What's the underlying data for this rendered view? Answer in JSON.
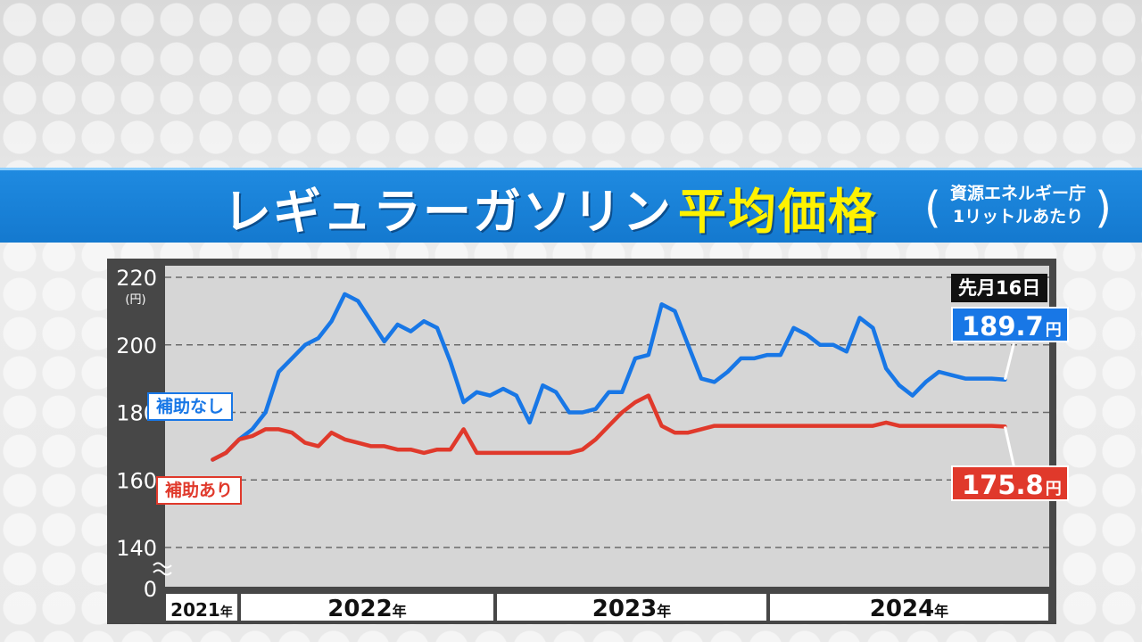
{
  "title": {
    "main": "レギュラーガソリン",
    "highlight": "平均価格",
    "source_line1": "資源エネルギー庁",
    "source_line2": "1リットルあたり"
  },
  "date_badge": "先月16日",
  "colors": {
    "no_subsidy": "#1877e6",
    "with_subsidy": "#e0392b",
    "title_bar": "#1479cf",
    "highlight": "#fff200"
  },
  "chart_data": {
    "type": "line",
    "title": "レギュラーガソリン平均価格",
    "ylabel": "(円)",
    "y_ticks": [
      0,
      140,
      160,
      180,
      200,
      220
    ],
    "ylim": [
      140,
      220
    ],
    "y_axis_break": true,
    "grid": true,
    "x_ticks": [
      "2021年",
      "2022年",
      "2023年",
      "2024年"
    ],
    "x": [
      2021.9,
      2021.95,
      2022.0,
      2022.05,
      2022.1,
      2022.15,
      2022.2,
      2022.25,
      2022.3,
      2022.35,
      2022.4,
      2022.45,
      2022.5,
      2022.55,
      2022.6,
      2022.65,
      2022.7,
      2022.75,
      2022.8,
      2022.85,
      2022.9,
      2022.95,
      2023.0,
      2023.05,
      2023.1,
      2023.15,
      2023.2,
      2023.25,
      2023.3,
      2023.35,
      2023.4,
      2023.45,
      2023.5,
      2023.55,
      2023.6,
      2023.65,
      2023.7,
      2023.75,
      2023.8,
      2023.85,
      2023.9,
      2023.95,
      2024.0,
      2024.05,
      2024.1,
      2024.15,
      2024.2,
      2024.25,
      2024.3,
      2024.35,
      2024.4,
      2024.45,
      2024.5,
      2024.55,
      2024.6,
      2024.65,
      2024.7,
      2024.75,
      2024.8,
      2024.85,
      2024.9
    ],
    "series": [
      {
        "name": "補助なし",
        "values": [
          166,
          168,
          172,
          175,
          180,
          192,
          196,
          200,
          202,
          207,
          215,
          213,
          207,
          201,
          206,
          204,
          207,
          205,
          195,
          183,
          186,
          185,
          187,
          185,
          177,
          188,
          186,
          180,
          180,
          181,
          186,
          186,
          196,
          197,
          212,
          210,
          200,
          190,
          189,
          192,
          196,
          196,
          197,
          197,
          205,
          203,
          200,
          200,
          198,
          208,
          205,
          193,
          188,
          185,
          189,
          192,
          191,
          190,
          190,
          190,
          189.7
        ]
      },
      {
        "name": "補助あり",
        "values": [
          166,
          168,
          172,
          173,
          175,
          175,
          174,
          171,
          170,
          174,
          172,
          171,
          170,
          170,
          169,
          169,
          168,
          169,
          169,
          175,
          168,
          168,
          168,
          168,
          168,
          168,
          168,
          168,
          169,
          172,
          176,
          180,
          183,
          185,
          176,
          174,
          174,
          175,
          176,
          176,
          176,
          176,
          176,
          176,
          176,
          176,
          176,
          176,
          176,
          176,
          176,
          177,
          176,
          176,
          176,
          176,
          176,
          176,
          176,
          176,
          175.8
        ]
      }
    ],
    "annotations": {
      "no_subsidy_label": "補助なし",
      "with_subsidy_label": "補助あり",
      "no_subsidy_latest": "189.7",
      "with_subsidy_latest": "175.8",
      "unit": "円"
    }
  }
}
